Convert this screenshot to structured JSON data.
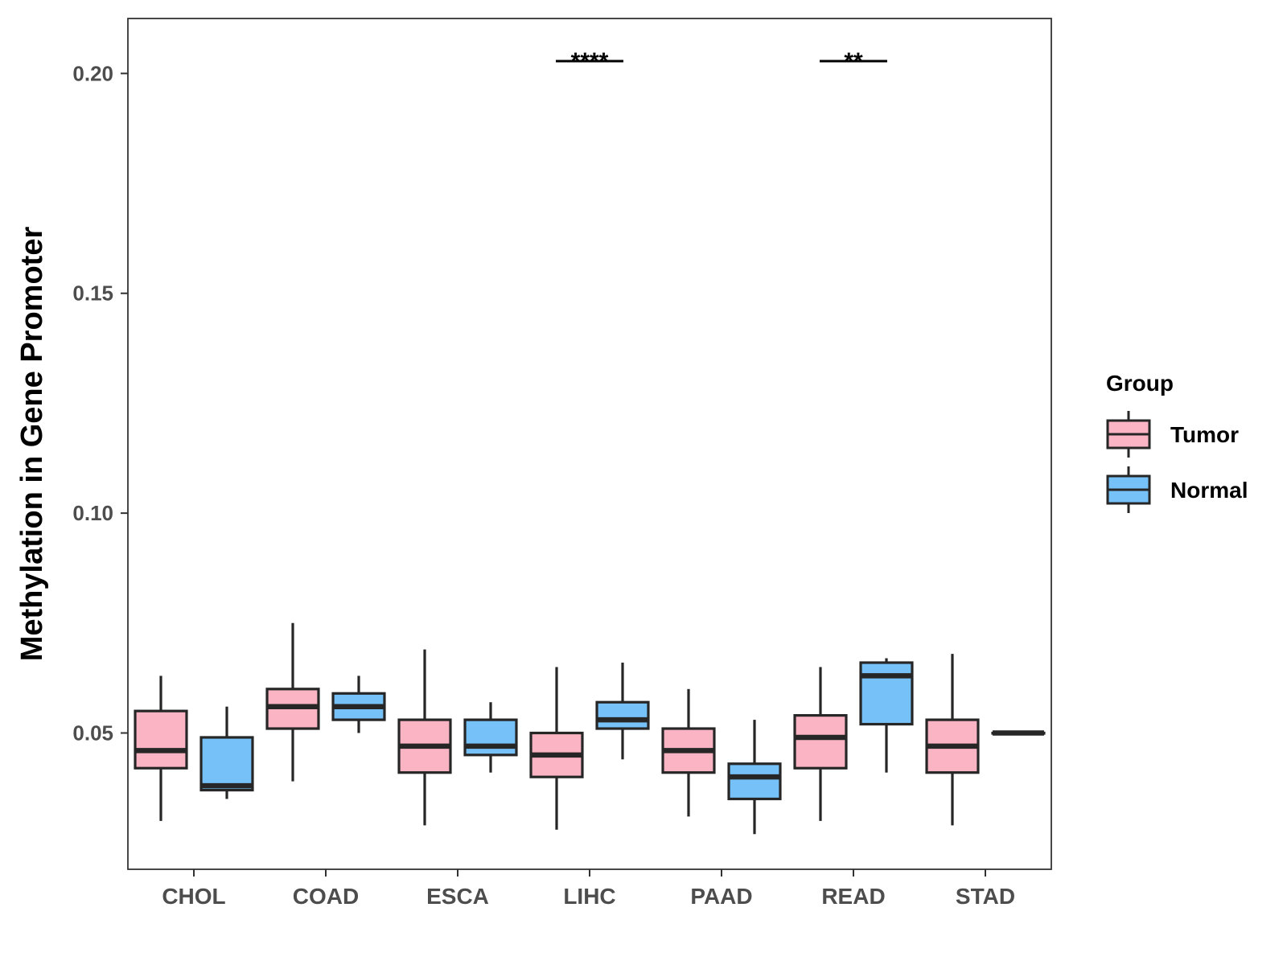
{
  "chart_data": {
    "type": "boxplot",
    "title": "",
    "xlabel": "",
    "ylabel": "Methylation in Gene Promoter",
    "ylim": [
      0.019,
      0.2125
    ],
    "yticks": [
      0.05,
      0.1,
      0.15,
      0.2
    ],
    "ytick_labels": [
      "0.05",
      "0.10",
      "0.15",
      "0.20"
    ],
    "categories": [
      "CHOL",
      "COAD",
      "ESCA",
      "LIHC",
      "PAAD",
      "READ",
      "STAD"
    ],
    "legend": {
      "title": "Group",
      "position": "right",
      "entries": [
        {
          "name": "Tumor",
          "color": "#FBB4C4"
        },
        {
          "name": "Normal",
          "color": "#76C1F8"
        }
      ]
    },
    "series": [
      {
        "name": "Tumor",
        "color": "#FBB4C4",
        "boxes": [
          {
            "category": "CHOL",
            "min": 0.03,
            "q1": 0.042,
            "median": 0.046,
            "q3": 0.055,
            "max": 0.063
          },
          {
            "category": "COAD",
            "min": 0.039,
            "q1": 0.051,
            "median": 0.056,
            "q3": 0.06,
            "max": 0.075
          },
          {
            "category": "ESCA",
            "min": 0.029,
            "q1": 0.041,
            "median": 0.047,
            "q3": 0.053,
            "max": 0.069
          },
          {
            "category": "LIHC",
            "min": 0.028,
            "q1": 0.04,
            "median": 0.045,
            "q3": 0.05,
            "max": 0.065
          },
          {
            "category": "PAAD",
            "min": 0.031,
            "q1": 0.041,
            "median": 0.046,
            "q3": 0.051,
            "max": 0.06
          },
          {
            "category": "READ",
            "min": 0.03,
            "q1": 0.042,
            "median": 0.049,
            "q3": 0.054,
            "max": 0.065
          },
          {
            "category": "STAD",
            "min": 0.029,
            "q1": 0.041,
            "median": 0.047,
            "q3": 0.053,
            "max": 0.068
          }
        ]
      },
      {
        "name": "Normal",
        "color": "#76C1F8",
        "boxes": [
          {
            "category": "CHOL",
            "min": 0.035,
            "q1": 0.037,
            "median": 0.038,
            "q3": 0.049,
            "max": 0.056
          },
          {
            "category": "COAD",
            "min": 0.05,
            "q1": 0.053,
            "median": 0.056,
            "q3": 0.059,
            "max": 0.063
          },
          {
            "category": "ESCA",
            "min": 0.041,
            "q1": 0.045,
            "median": 0.047,
            "q3": 0.053,
            "max": 0.057
          },
          {
            "category": "LIHC",
            "min": 0.044,
            "q1": 0.051,
            "median": 0.053,
            "q3": 0.057,
            "max": 0.066
          },
          {
            "category": "PAAD",
            "min": 0.027,
            "q1": 0.035,
            "median": 0.04,
            "q3": 0.043,
            "max": 0.053
          },
          {
            "category": "READ",
            "min": 0.041,
            "q1": 0.052,
            "median": 0.063,
            "q3": 0.066,
            "max": 0.067
          },
          {
            "category": "STAD",
            "min": 0.05,
            "q1": 0.05,
            "median": 0.05,
            "q3": 0.05,
            "max": 0.05
          }
        ]
      }
    ],
    "annotations": [
      {
        "category": "LIHC",
        "label": "****",
        "y": 0.2028
      },
      {
        "category": "READ",
        "label": "**",
        "y": 0.2028
      }
    ]
  }
}
